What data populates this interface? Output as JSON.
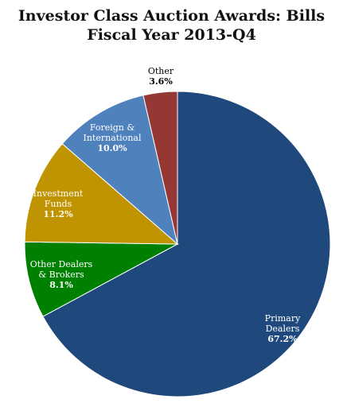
{
  "chart_data": {
    "type": "pie",
    "title_lines": [
      "Investor Class Auction Awards: Bills",
      "Fiscal Year 2013-Q4"
    ],
    "slices": [
      {
        "name": "Primary Dealers",
        "label_lines": [
          "Primary",
          "Dealers"
        ],
        "value": 67.2,
        "pct_label": "67.2%",
        "color": "#1f497d",
        "text_color": "#ffffff"
      },
      {
        "name": "Other Dealers & Brokers",
        "label_lines": [
          "Other Dealers",
          "& Brokers"
        ],
        "value": 8.1,
        "pct_label": "8.1%",
        "color": "#008000",
        "text_color": "#ffffff"
      },
      {
        "name": "Investment Funds",
        "label_lines": [
          "Investment",
          "Funds"
        ],
        "value": 11.2,
        "pct_label": "11.2%",
        "color": "#c09400",
        "text_color": "#ffffff"
      },
      {
        "name": "Foreign & International",
        "label_lines": [
          "Foreign &",
          "International"
        ],
        "value": 10.0,
        "pct_label": "10.0%",
        "color": "#4f81bd",
        "text_color": "#ffffff"
      },
      {
        "name": "Other",
        "label_lines": [
          "Other"
        ],
        "value": 3.6,
        "pct_label": "3.6%",
        "color": "#953735",
        "text_color": "#000000"
      }
    ]
  }
}
